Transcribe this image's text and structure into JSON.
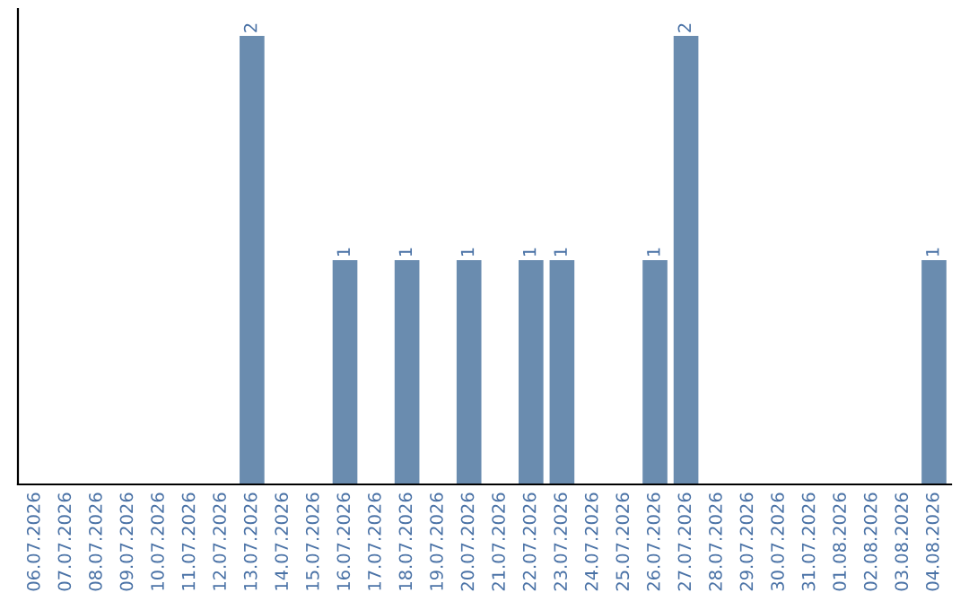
{
  "chart_data": {
    "type": "bar",
    "categories": [
      "06.07.2026",
      "07.07.2026",
      "08.07.2026",
      "09.07.2026",
      "10.07.2026",
      "11.07.2026",
      "12.07.2026",
      "13.07.2026",
      "14.07.2026",
      "15.07.2026",
      "16.07.2026",
      "17.07.2026",
      "18.07.2026",
      "19.07.2026",
      "20.07.2026",
      "21.07.2026",
      "22.07.2026",
      "23.07.2026",
      "24.07.2026",
      "25.07.2026",
      "26.07.2026",
      "27.07.2026",
      "28.07.2026",
      "29.07.2026",
      "30.07.2026",
      "31.07.2026",
      "01.08.2026",
      "02.08.2026",
      "03.08.2026",
      "04.08.2026"
    ],
    "values": [
      0,
      0,
      0,
      0,
      0,
      0,
      0,
      2,
      0,
      0,
      1,
      0,
      1,
      0,
      1,
      0,
      1,
      1,
      0,
      0,
      1,
      2,
      0,
      0,
      0,
      0,
      0,
      0,
      0,
      1
    ],
    "value_labels": [
      null,
      null,
      null,
      null,
      null,
      null,
      null,
      "2",
      null,
      null,
      "1",
      null,
      "1",
      null,
      "1",
      null,
      "1",
      "1",
      null,
      null,
      "1",
      "2",
      null,
      null,
      null,
      null,
      null,
      null,
      null,
      "1"
    ],
    "color": "#6a8caf",
    "ylim": [
      0,
      2.12
    ],
    "tick_labels": "x",
    "grid": false,
    "legend": false
  }
}
